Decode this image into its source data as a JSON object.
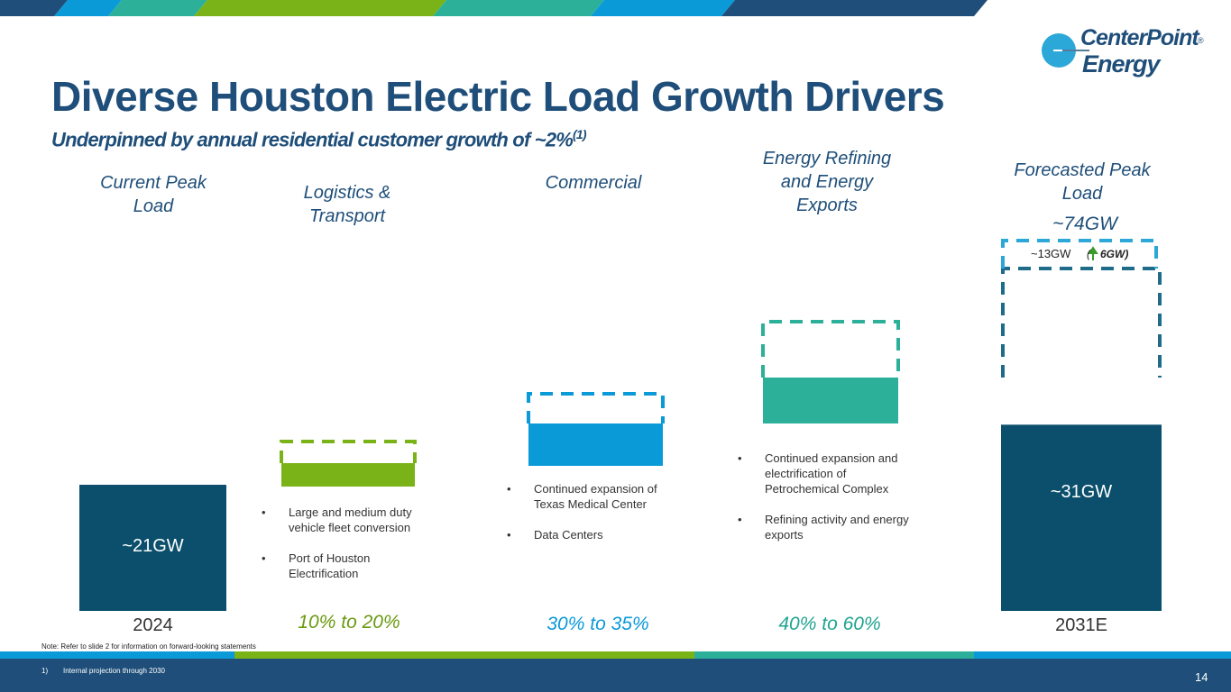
{
  "colors": {
    "navy": "#1e4e79",
    "dark_teal": "#0b4f6c",
    "green": "#7ab317",
    "blue": "#0b9ad8",
    "teal": "#2cb09a",
    "light_blue": "#2ba8d8"
  },
  "header": {
    "title": "Diverse Houston Electric Load Growth Drivers",
    "subtitle": "Underpinned by annual residential customer growth of ~2%",
    "subtitle_footnote": "(1)"
  },
  "logo": {
    "line1": "CenterPoint",
    "line2": "Energy",
    "registered": "®",
    "icon": "globe-icon"
  },
  "chart_data": {
    "type": "bar",
    "subtype": "waterfall",
    "unit": "GW",
    "categories": [
      "Current Peak Load",
      "Logistics & Transport",
      "Commercial",
      "Energy Refining and Energy Exports",
      "Forecasted Peak Load"
    ],
    "bars": [
      {
        "name": "Current Peak Load",
        "label_line1": "Current Peak",
        "label_line2": "Load",
        "value": 21,
        "value_label": "~21GW",
        "year": "2024"
      },
      {
        "name": "Logistics & Transport",
        "label_line1": "Logistics &",
        "label_line2": "Transport",
        "share_of_growth": "10% to 20%",
        "bullets": [
          "Large and medium duty vehicle fleet conversion",
          "Port of Houston Electrification"
        ]
      },
      {
        "name": "Commercial",
        "label_line1": "Commercial",
        "share_of_growth": "30% to 35%",
        "bullets": [
          "Continued expansion of Texas Medical Center",
          "Data Centers"
        ]
      },
      {
        "name": "Energy Refining and Energy Exports",
        "label_line1": "Energy Refining",
        "label_line2": "and Energy",
        "label_line3": "Exports",
        "share_of_growth": "40% to 60%",
        "bullets": [
          "Continued expansion and electrification of Petrochemical Complex",
          "Refining activity and energy exports"
        ]
      },
      {
        "name": "Forecasted Peak Load",
        "label_line1": "Forecasted Peak",
        "label_line2": "Load",
        "value": 31,
        "value_label": "~31GW",
        "upside_total_label": "~74GW",
        "upside_increment_label": "~13GW",
        "upside_change_open": "(",
        "upside_change_label": "6GW)",
        "year": "2031E"
      }
    ]
  },
  "footer": {
    "note": "Note: Refer to slide 2 for information on forward-looking statements",
    "footnote_number": "1)",
    "footnote_text": "Internal projection through 2030",
    "page_number": "14"
  }
}
